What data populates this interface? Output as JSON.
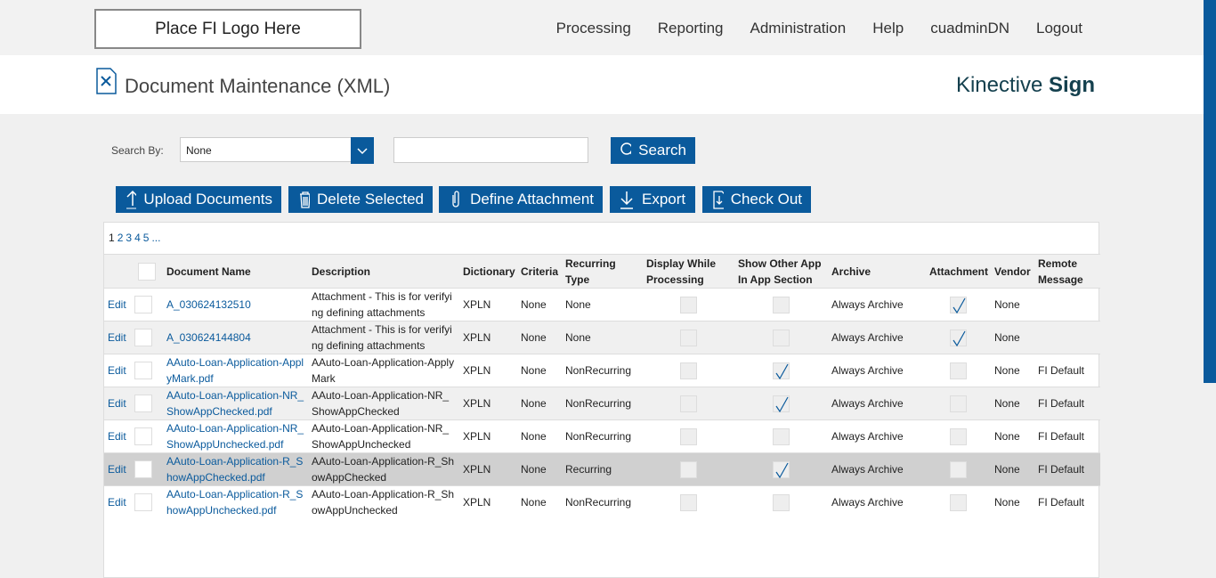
{
  "header": {
    "logo": "Place FI Logo Here",
    "nav": [
      "Processing",
      "Reporting",
      "Administration",
      "Help",
      "cuadminDN",
      "Logout"
    ]
  },
  "title": "Document Maintenance (XML)",
  "brand": {
    "light": "Kinective",
    "bold": "Sign"
  },
  "search": {
    "label": "Search By:",
    "selected": "None",
    "button": "Search"
  },
  "actions": [
    "Upload Documents",
    "Delete Selected",
    "Define Attachment",
    "Export",
    "Check Out"
  ],
  "pagination": {
    "pages": [
      "1",
      "2",
      "3",
      "4",
      "5"
    ],
    "more": "..."
  },
  "table": {
    "columns": [
      "Document Name",
      "Description",
      "Dictionary",
      "Criteria",
      "Recurring Type",
      "Display While Processing",
      "Show Other App In App Section",
      "Archive",
      "Attachment",
      "Vendor",
      "Remote Message"
    ],
    "rows": [
      {
        "edit": "Edit",
        "name": "A_030624132510",
        "description": "Attachment - This is for verifying defining attachments",
        "dictionary": "XPLN",
        "criteria": "None",
        "recurring": "None",
        "display": false,
        "show_other": false,
        "archive": "Always Archive",
        "attachment": true,
        "vendor": "None",
        "remote": null
      },
      {
        "edit": "Edit",
        "name": "A_030624144804",
        "description": "Attachment - This is for verifying defining attachments",
        "dictionary": "XPLN",
        "criteria": "None",
        "recurring": "None",
        "display": false,
        "show_other": false,
        "archive": "Always Archive",
        "attachment": true,
        "vendor": "None",
        "remote": null
      },
      {
        "edit": "Edit",
        "name": "AAuto-Loan-Application-ApplyMark.pdf",
        "description": "AAuto-Loan-Application-ApplyMark",
        "dictionary": "XPLN",
        "criteria": "None",
        "recurring": "NonRecurring",
        "display": false,
        "show_other": true,
        "archive": "Always Archive",
        "attachment": false,
        "vendor": "None",
        "remote": "FI Default"
      },
      {
        "edit": "Edit",
        "name": "AAuto-Loan-Application-NR_ShowAppChecked.pdf",
        "description": "AAuto-Loan-Application-NR_ShowAppChecked",
        "dictionary": "XPLN",
        "criteria": "None",
        "recurring": "NonRecurring",
        "display": false,
        "show_other": true,
        "archive": "Always Archive",
        "attachment": false,
        "vendor": "None",
        "remote": "FI Default"
      },
      {
        "edit": "Edit",
        "name": "AAuto-Loan-Application-NR_ShowAppUnchecked.pdf",
        "description": "AAuto-Loan-Application-NR_ShowAppUnchecked",
        "dictionary": "XPLN",
        "criteria": "None",
        "recurring": "NonRecurring",
        "display": false,
        "show_other": false,
        "archive": "Always Archive",
        "attachment": false,
        "vendor": "None",
        "remote": "FI Default"
      },
      {
        "edit": "Edit",
        "name": "AAuto-Loan-Application-R_ShowAppChecked.pdf",
        "description": "AAuto-Loan-Application-R_ShowAppChecked",
        "dictionary": "XPLN",
        "criteria": "None",
        "recurring": "Recurring",
        "display": false,
        "show_other": true,
        "archive": "Always Archive",
        "attachment": false,
        "vendor": "None",
        "remote": "FI Default"
      },
      {
        "edit": "Edit",
        "name": "AAuto-Loan-Application-R_ShowAppUnchecked.pdf",
        "description": "AAuto-Loan-Application-R_ShowAppUnchecked",
        "dictionary": "XPLN",
        "criteria": "None",
        "recurring": "NonRecurring",
        "display": false,
        "show_other": false,
        "archive": "Always Archive",
        "attachment": false,
        "vendor": "None",
        "remote": "FI Default"
      }
    ]
  }
}
